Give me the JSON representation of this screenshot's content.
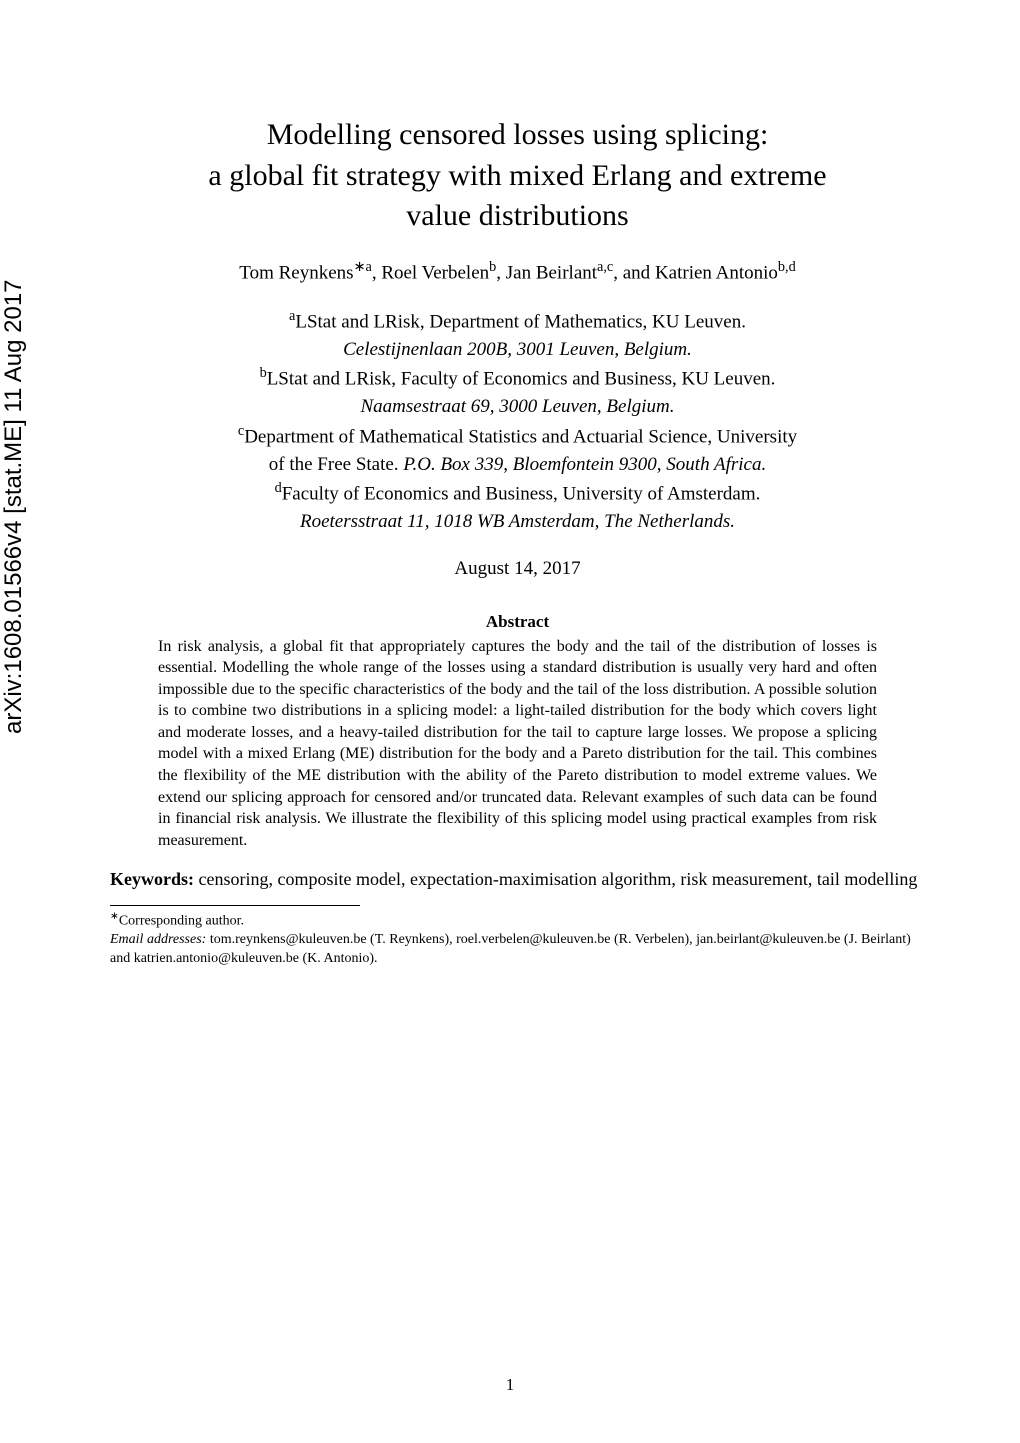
{
  "arxiv": {
    "label": "arXiv:1608.01566v4  [stat.ME]  11 Aug 2017"
  },
  "title": {
    "line1": "Modelling censored losses using splicing:",
    "line2": "a global fit strategy with mixed Erlang and extreme",
    "line3": "value distributions"
  },
  "authors": {
    "a1_name": "Tom Reynkens",
    "a1_sup": "∗a",
    "a2_name": "Roel Verbelen",
    "a2_sup": "b",
    "a3_name": "Jan Beirlant",
    "a3_sup": "a,c",
    "a4_name": "Katrien Antonio",
    "a4_sup": "b,d",
    "sep": ", ",
    "and": ", and "
  },
  "affiliations": {
    "a": {
      "sup": "a",
      "text": "LStat and LRisk, Department of Mathematics, KU Leuven.",
      "address": "Celestijnenlaan 200B, 3001 Leuven, Belgium."
    },
    "b": {
      "sup": "b",
      "text": "LStat and LRisk, Faculty of Economics and Business, KU Leuven.",
      "address": "Naamsestraat 69, 3000 Leuven, Belgium."
    },
    "c": {
      "sup": "c",
      "text": "Department of Mathematical Statistics and Actuarial Science, University",
      "text2": "of the Free State. ",
      "address": "P.O. Box 339, Bloemfontein 9300, South Africa."
    },
    "d": {
      "sup": "d",
      "text": "Faculty of Economics and Business, University of Amsterdam.",
      "address": "Roetersstraat 11, 1018 WB Amsterdam, The Netherlands."
    }
  },
  "date": "August 14, 2017",
  "abstract": {
    "heading": "Abstract",
    "body": "In risk analysis, a global fit that appropriately captures the body and the tail of the distribution of losses is essential. Modelling the whole range of the losses using a standard distribution is usually very hard and often impossible due to the specific characteristics of the body and the tail of the loss distribution. A possible solution is to combine two distributions in a splicing model: a light-tailed distribution for the body which covers light and moderate losses, and a heavy-tailed distribution for the tail to capture large losses. We propose a splicing model with a mixed Erlang (ME) distribution for the body and a Pareto distribution for the tail. This combines the flexibility of the ME distribution with the ability of the Pareto distribution to model extreme values. We extend our splicing approach for censored and/or truncated data. Relevant examples of such data can be found in financial risk analysis. We illustrate the flexibility of this splicing model using practical examples from risk measurement."
  },
  "keywords": {
    "label": "Keywords:",
    "text": " censoring, composite model, expectation-maximisation algorithm, risk measurement, tail modelling"
  },
  "footnotes": {
    "star": "∗",
    "corresponding": "Corresponding author.",
    "email_label": "Email addresses:",
    "emails": " tom.reynkens@kuleuven.be (T. Reynkens), roel.verbelen@kuleuven.be (R. Verbelen), jan.beirlant@kuleuven.be (J. Beirlant) and katrien.antonio@kuleuven.be (K. Antonio)."
  },
  "page_number": "1"
}
